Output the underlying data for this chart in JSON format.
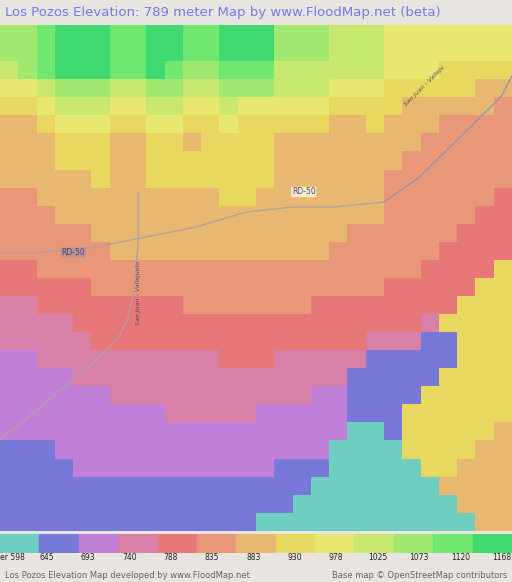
{
  "title": "Los Pozos Elevation: 789 meter Map by www.FloodMap.net (beta)",
  "title_color": "#7777ee",
  "title_fontsize": 9.5,
  "bg_color": "#e8e4df",
  "colorbar_values": [
    598,
    645,
    693,
    740,
    788,
    835,
    883,
    930,
    978,
    1025,
    1073,
    1120,
    1168
  ],
  "colorbar_colors": [
    "#6ecec0",
    "#7878d8",
    "#c080d8",
    "#d880a8",
    "#e87878",
    "#e89878",
    "#e8b870",
    "#e8d860",
    "#e8e870",
    "#c8e870",
    "#a0e870",
    "#70e870",
    "#40d870"
  ],
  "footer_left": "Los Pozos Elevation Map developed by www.FloodMap.net",
  "footer_right": "Base map © OpenStreetMap contributors",
  "footer_color": "#666666",
  "footer_fontsize": 6.0,
  "label_meter": "meter",
  "road_color": "#b0a0a0",
  "road_label_color": "#555588",
  "tile_size": 18,
  "map_cols": 28,
  "map_rows": 28,
  "elevation_grid": [
    [
      10,
      10,
      11,
      12,
      12,
      12,
      11,
      11,
      12,
      12,
      11,
      11,
      12,
      12,
      12,
      10,
      10,
      10,
      9,
      9,
      9,
      8,
      8,
      8,
      8,
      8,
      8,
      8
    ],
    [
      10,
      10,
      11,
      12,
      12,
      12,
      11,
      11,
      12,
      12,
      11,
      11,
      12,
      12,
      12,
      10,
      10,
      10,
      9,
      9,
      9,
      8,
      8,
      8,
      8,
      8,
      8,
      8
    ],
    [
      9,
      10,
      11,
      12,
      12,
      12,
      11,
      11,
      12,
      11,
      10,
      10,
      11,
      11,
      11,
      9,
      9,
      9,
      9,
      9,
      9,
      8,
      8,
      8,
      7,
      7,
      7,
      7
    ],
    [
      8,
      8,
      9,
      10,
      10,
      10,
      9,
      9,
      10,
      10,
      9,
      9,
      10,
      10,
      10,
      9,
      9,
      9,
      8,
      8,
      8,
      7,
      7,
      7,
      7,
      7,
      6,
      6
    ],
    [
      7,
      7,
      8,
      9,
      9,
      9,
      8,
      8,
      9,
      9,
      8,
      8,
      9,
      8,
      8,
      8,
      8,
      8,
      7,
      7,
      7,
      7,
      6,
      6,
      6,
      6,
      6,
      5
    ],
    [
      6,
      6,
      7,
      8,
      8,
      8,
      7,
      7,
      8,
      8,
      7,
      7,
      8,
      7,
      7,
      7,
      7,
      7,
      6,
      6,
      7,
      6,
      6,
      6,
      5,
      5,
      5,
      5
    ],
    [
      6,
      6,
      6,
      7,
      7,
      7,
      6,
      6,
      7,
      7,
      6,
      7,
      7,
      7,
      7,
      6,
      6,
      6,
      6,
      6,
      6,
      6,
      6,
      5,
      5,
      5,
      5,
      5
    ],
    [
      6,
      6,
      6,
      7,
      7,
      7,
      6,
      6,
      7,
      7,
      7,
      7,
      7,
      7,
      7,
      6,
      6,
      6,
      6,
      6,
      6,
      6,
      5,
      5,
      5,
      5,
      5,
      5
    ],
    [
      6,
      6,
      6,
      6,
      6,
      7,
      6,
      6,
      7,
      7,
      7,
      7,
      7,
      7,
      7,
      6,
      6,
      6,
      6,
      6,
      6,
      5,
      5,
      5,
      5,
      5,
      5,
      5
    ],
    [
      5,
      5,
      6,
      6,
      6,
      6,
      6,
      6,
      6,
      6,
      6,
      6,
      7,
      7,
      6,
      6,
      6,
      6,
      6,
      6,
      6,
      5,
      5,
      5,
      5,
      5,
      5,
      4
    ],
    [
      5,
      5,
      5,
      6,
      6,
      6,
      6,
      6,
      6,
      6,
      6,
      6,
      6,
      6,
      6,
      6,
      6,
      6,
      6,
      6,
      6,
      5,
      5,
      5,
      5,
      5,
      4,
      4
    ],
    [
      5,
      5,
      5,
      5,
      5,
      6,
      6,
      6,
      6,
      6,
      6,
      6,
      6,
      6,
      6,
      6,
      6,
      6,
      6,
      5,
      5,
      5,
      5,
      5,
      5,
      4,
      4,
      4
    ],
    [
      5,
      5,
      5,
      5,
      5,
      5,
      6,
      6,
      6,
      6,
      6,
      6,
      6,
      6,
      6,
      6,
      6,
      6,
      5,
      5,
      5,
      5,
      5,
      5,
      4,
      4,
      4,
      4
    ],
    [
      4,
      4,
      5,
      5,
      5,
      5,
      5,
      5,
      5,
      5,
      5,
      5,
      5,
      5,
      5,
      5,
      5,
      5,
      5,
      5,
      5,
      5,
      5,
      4,
      4,
      4,
      4,
      7
    ],
    [
      4,
      4,
      4,
      4,
      4,
      5,
      5,
      5,
      5,
      5,
      5,
      5,
      5,
      5,
      5,
      5,
      5,
      5,
      5,
      5,
      5,
      4,
      4,
      4,
      4,
      4,
      7,
      7
    ],
    [
      3,
      3,
      4,
      4,
      4,
      4,
      4,
      4,
      4,
      4,
      5,
      5,
      5,
      5,
      5,
      5,
      5,
      4,
      4,
      4,
      4,
      4,
      4,
      4,
      4,
      7,
      7,
      7
    ],
    [
      3,
      3,
      3,
      3,
      4,
      4,
      4,
      4,
      4,
      4,
      4,
      4,
      4,
      4,
      4,
      4,
      4,
      4,
      4,
      4,
      4,
      4,
      4,
      3,
      7,
      7,
      7,
      7
    ],
    [
      3,
      3,
      3,
      3,
      3,
      4,
      4,
      4,
      4,
      4,
      4,
      4,
      4,
      4,
      4,
      4,
      4,
      4,
      4,
      4,
      3,
      3,
      3,
      1,
      1,
      7,
      7,
      7
    ],
    [
      2,
      2,
      3,
      3,
      3,
      3,
      3,
      3,
      3,
      3,
      3,
      3,
      4,
      4,
      4,
      3,
      3,
      3,
      3,
      3,
      1,
      1,
      1,
      1,
      1,
      7,
      7,
      7
    ],
    [
      2,
      2,
      2,
      2,
      3,
      3,
      3,
      3,
      3,
      3,
      3,
      3,
      3,
      3,
      3,
      3,
      3,
      3,
      3,
      1,
      1,
      1,
      1,
      1,
      7,
      7,
      7,
      7
    ],
    [
      2,
      2,
      2,
      2,
      2,
      2,
      3,
      3,
      3,
      3,
      3,
      3,
      3,
      3,
      3,
      3,
      3,
      2,
      2,
      1,
      1,
      1,
      1,
      7,
      7,
      7,
      7,
      7
    ],
    [
      2,
      2,
      2,
      2,
      2,
      2,
      2,
      2,
      2,
      3,
      3,
      3,
      3,
      3,
      2,
      2,
      2,
      2,
      2,
      1,
      1,
      1,
      7,
      7,
      7,
      7,
      7,
      7
    ],
    [
      2,
      2,
      2,
      2,
      2,
      2,
      2,
      2,
      2,
      2,
      2,
      2,
      2,
      2,
      2,
      2,
      2,
      2,
      2,
      0,
      0,
      1,
      7,
      7,
      7,
      7,
      7,
      6
    ],
    [
      1,
      1,
      1,
      2,
      2,
      2,
      2,
      2,
      2,
      2,
      2,
      2,
      2,
      2,
      2,
      2,
      2,
      2,
      0,
      0,
      0,
      0,
      7,
      7,
      7,
      7,
      6,
      6
    ],
    [
      1,
      1,
      1,
      1,
      2,
      2,
      2,
      2,
      2,
      2,
      2,
      2,
      2,
      2,
      2,
      1,
      1,
      1,
      0,
      0,
      0,
      0,
      0,
      7,
      7,
      6,
      6,
      6
    ],
    [
      1,
      1,
      1,
      1,
      1,
      1,
      1,
      1,
      1,
      1,
      1,
      1,
      1,
      1,
      1,
      1,
      1,
      0,
      0,
      0,
      0,
      0,
      0,
      0,
      6,
      6,
      6,
      6
    ],
    [
      1,
      1,
      1,
      1,
      1,
      1,
      1,
      1,
      1,
      1,
      1,
      1,
      1,
      1,
      1,
      1,
      0,
      0,
      0,
      0,
      0,
      0,
      0,
      0,
      0,
      6,
      6,
      6
    ],
    [
      1,
      1,
      1,
      1,
      1,
      1,
      1,
      1,
      1,
      1,
      1,
      1,
      1,
      1,
      0,
      0,
      0,
      0,
      0,
      0,
      0,
      0,
      0,
      0,
      0,
      0,
      6,
      6
    ]
  ]
}
